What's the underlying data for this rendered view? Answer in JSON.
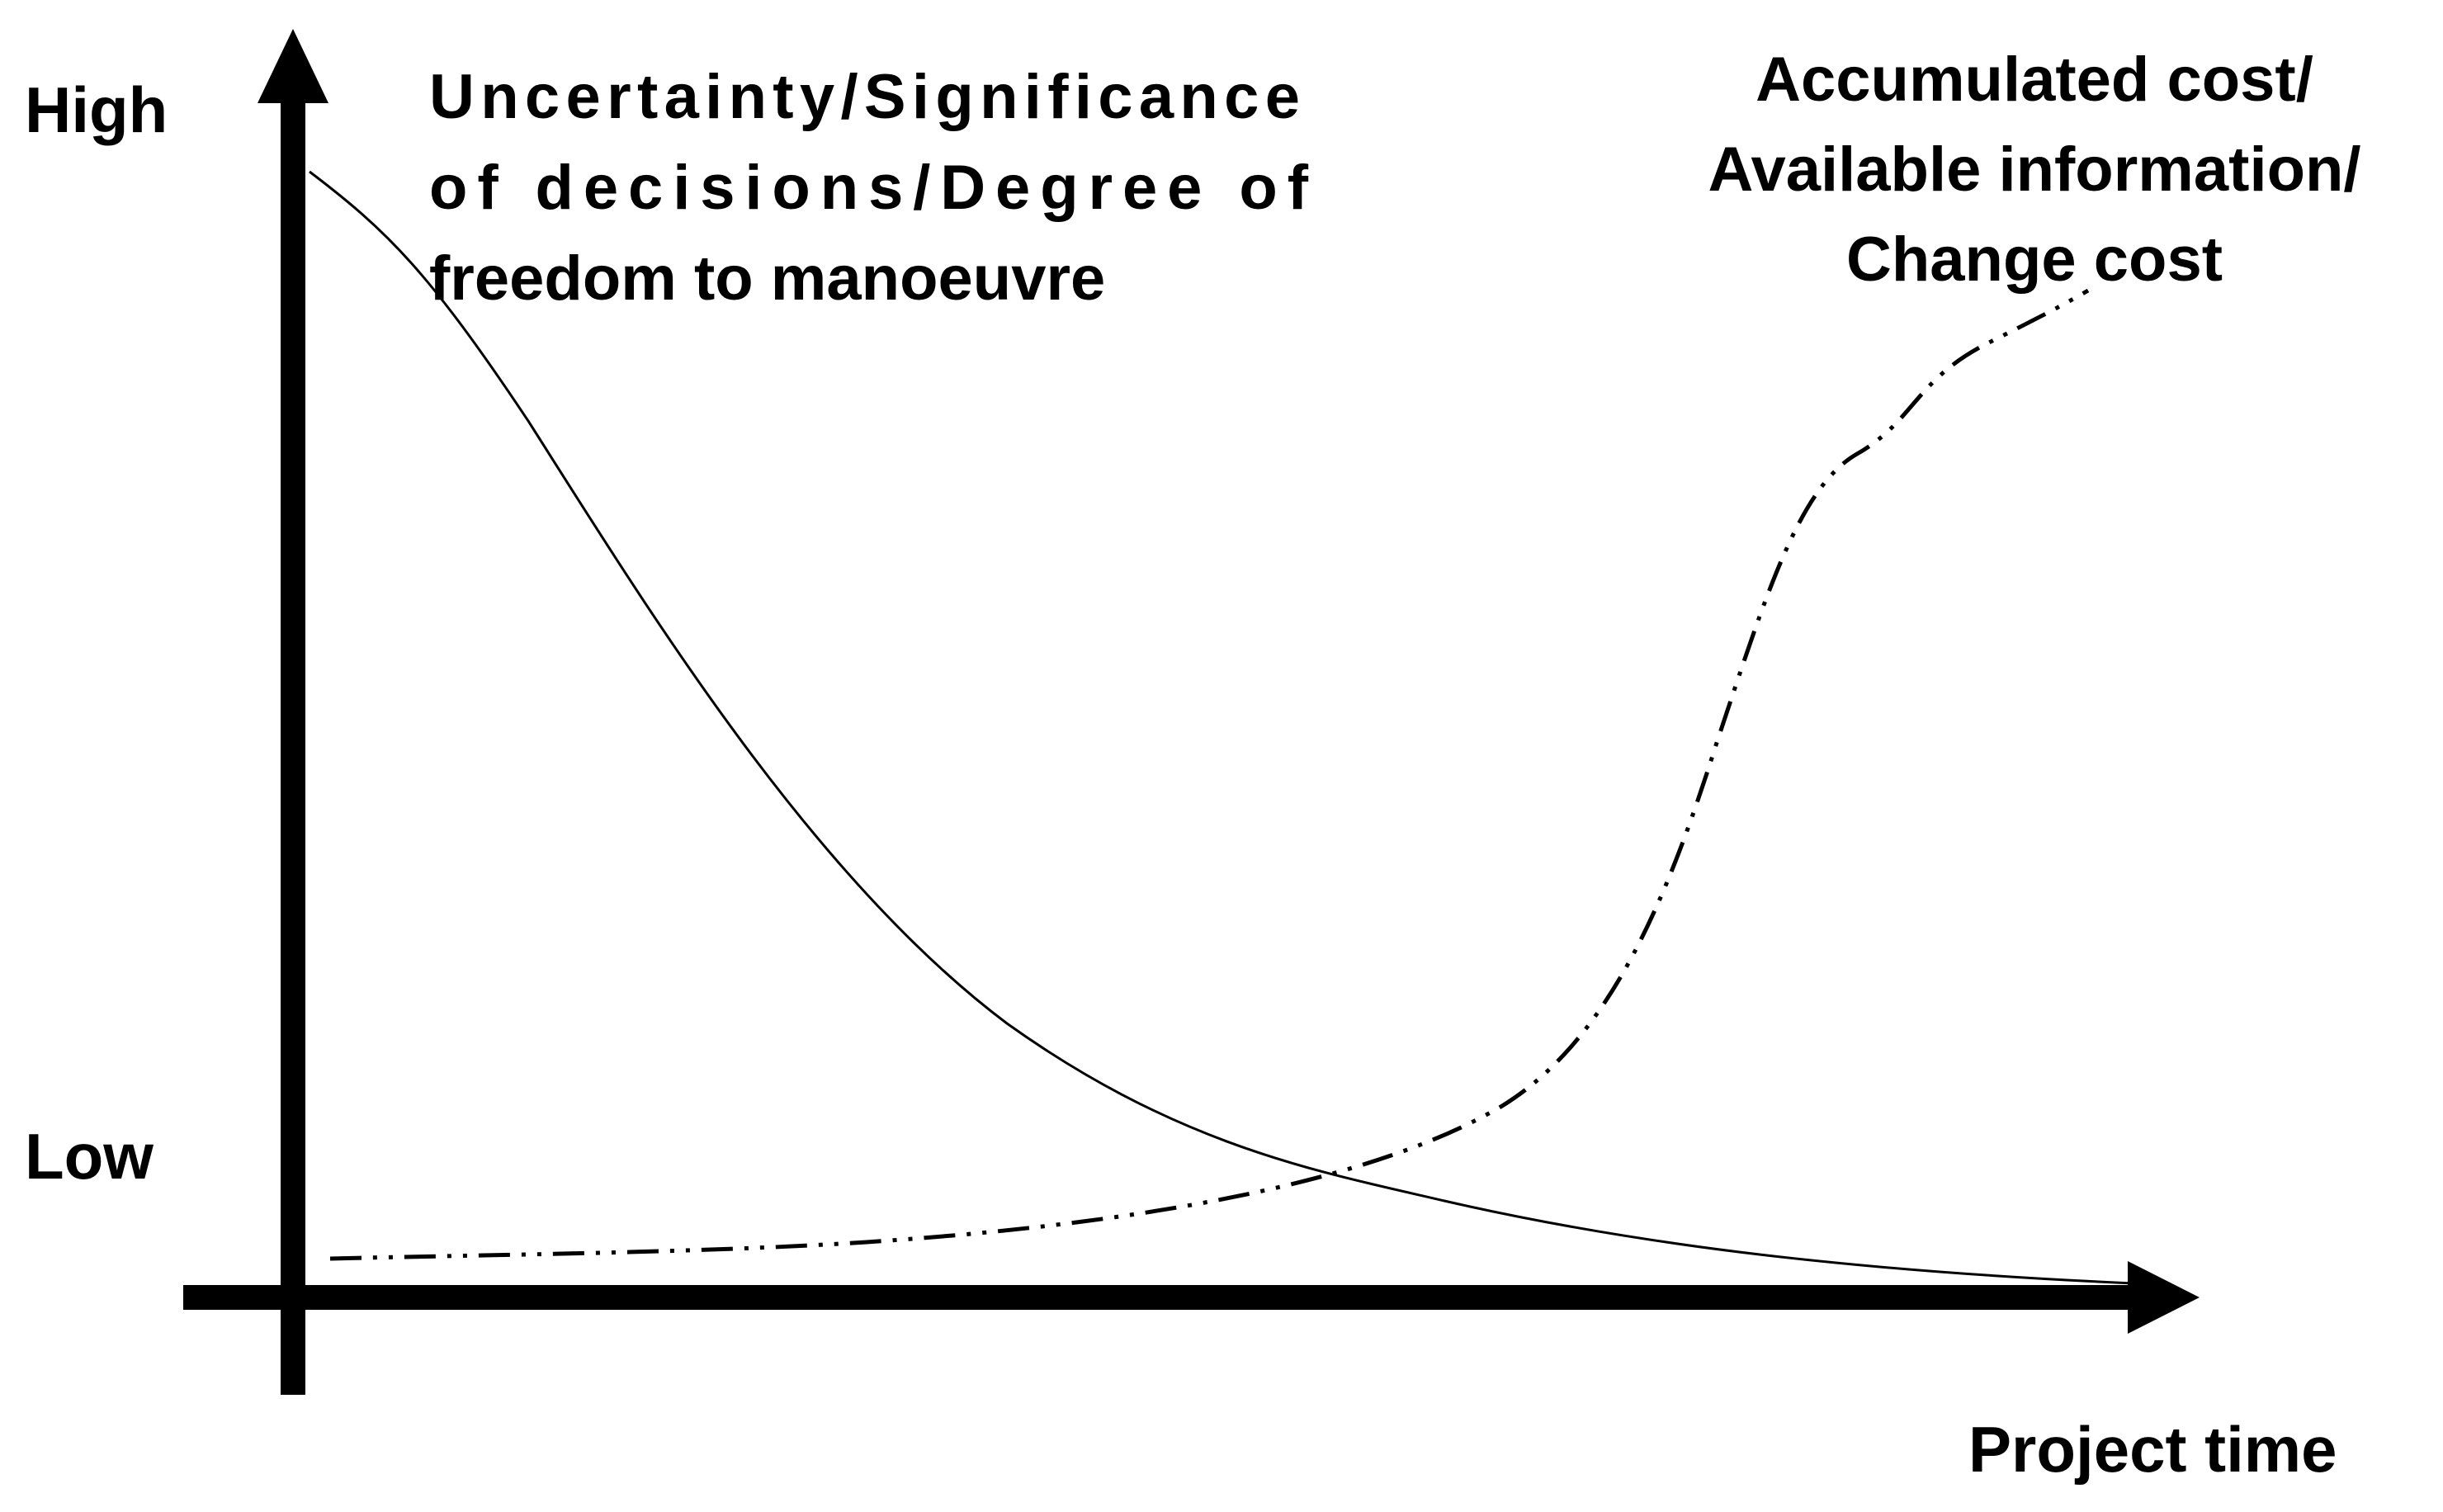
{
  "diagram": {
    "y_axis": {
      "high_label": "High",
      "low_label": "Low"
    },
    "x_axis": {
      "label": "Project time"
    },
    "curves": {
      "decreasing": {
        "label_lines": [
          "Uncertainty/Significance",
          "of decisions/Degree of",
          "freedom to manoeuvre"
        ],
        "style": "solid",
        "trend": "decreasing"
      },
      "increasing": {
        "label_lines": [
          "Accumulated cost/",
          "Available information/",
          "Change cost"
        ],
        "style": "dash-dot-dot",
        "trend": "increasing"
      }
    },
    "colors": {
      "ink": "#000000",
      "background": "#ffffff"
    }
  }
}
